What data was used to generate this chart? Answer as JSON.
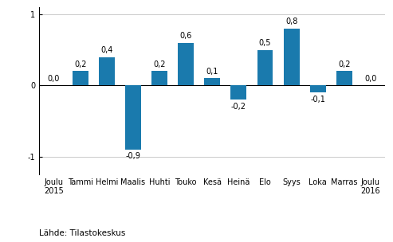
{
  "categories": [
    "Joulu\n2015",
    "Tammi",
    "Helmi",
    "Maalis",
    "Huhti",
    "Touko",
    "Kesä",
    "Heinä",
    "Elo",
    "Syys",
    "Loka",
    "Marras",
    "Joulu\n2016"
  ],
  "values": [
    0.0,
    0.2,
    0.4,
    -0.9,
    0.2,
    0.6,
    0.1,
    -0.2,
    0.5,
    0.8,
    -0.1,
    0.2,
    0.0
  ],
  "bar_color": "#1a7aad",
  "ylim": [
    -1.25,
    1.1
  ],
  "yticks": [
    -1,
    0,
    1
  ],
  "background_color": "#ffffff",
  "source_text": "Lähde: Tilastokeskus",
  "label_fontsize": 7.0,
  "tick_fontsize": 7.0,
  "source_fontsize": 7.5
}
